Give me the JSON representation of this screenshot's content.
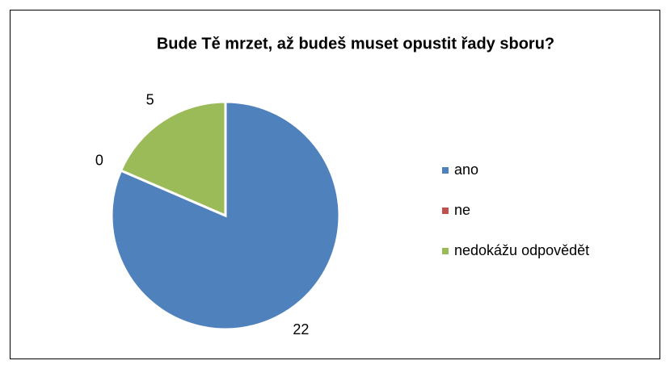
{
  "chart_data": {
    "type": "pie",
    "title": "Bude Tě mrzet, až budeš muset opustit řady sboru?",
    "categories": [
      "ano",
      "ne",
      "nedokážu odpovědět"
    ],
    "values": [
      22,
      0,
      5
    ],
    "colors": [
      "#4f81bd",
      "#c0504d",
      "#9bbb59"
    ],
    "legend": "right"
  }
}
